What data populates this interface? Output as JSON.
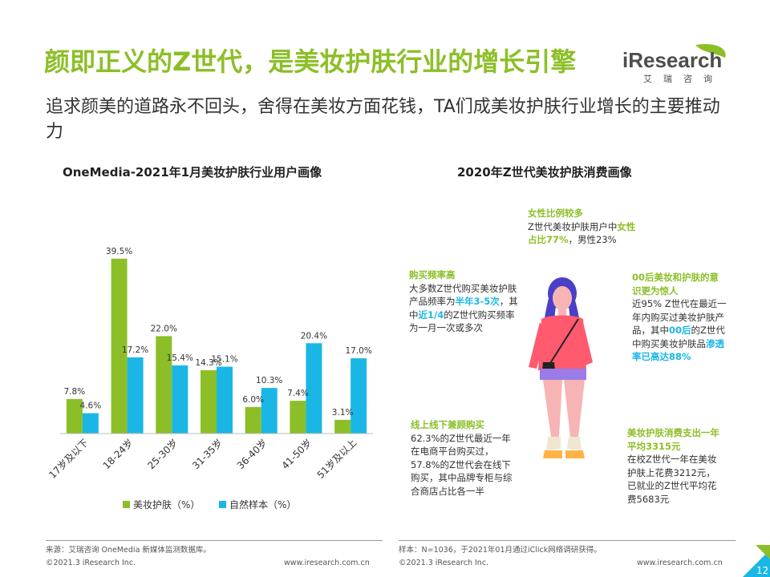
{
  "title": "颜即正义的Z世代，是美妆护肤行业的增长引擎",
  "subtitle": "追求颜美的道路永不回头，舍得在美妆方面花钱，TA们成美妆护肤行业增长的主要推动力",
  "logo": {
    "name": "iResearch",
    "sub": "艾瑞咨询"
  },
  "left_section_title": "OneMedia-2021年1月美妆护肤行业用户画像",
  "right_section_title": "2020年Z世代美妆护肤消费画像",
  "chart_data": {
    "type": "bar",
    "categories": [
      "17岁及以下",
      "18-24岁",
      "25-30岁",
      "31-35岁",
      "36-40岁",
      "41-50岁",
      "51岁及以上"
    ],
    "series": [
      {
        "name": "美妆护肤（%）",
        "values": [
          7.8,
          39.5,
          22.0,
          14.3,
          6.0,
          7.4,
          3.1
        ],
        "labels": [
          "7.8%",
          "39.5%",
          "22.0%",
          "14.3%",
          "6.0%",
          "7.4%",
          "3.1%"
        ],
        "color": "#8cbf27"
      },
      {
        "name": "自然样本（%）",
        "values": [
          4.6,
          17.2,
          15.4,
          15.1,
          10.3,
          20.4,
          17.0
        ],
        "labels": [
          "4.6%",
          "17.2%",
          "15.4%",
          "15.1%",
          "10.3%",
          "20.4%",
          "17.0%"
        ],
        "color": "#1ab7e6"
      }
    ],
    "ylim": [
      0,
      40
    ],
    "grid": false,
    "legend_position": "bottom"
  },
  "callouts": {
    "female": {
      "head": "女性比例较多",
      "t1": "Z世代美妆护肤用户中",
      "hl": "女性占比77%",
      "t2": "，男性23%"
    },
    "frequency": {
      "head": "购买频率高",
      "t1": "大多数Z世代购买美妆护肤产品频率为",
      "hl1": "半年3-5次",
      "t2": "，其中",
      "hl2": "近1/4",
      "t3": "的Z世代购买频率为一月一次或多次"
    },
    "awareness": {
      "head": "00后美妆和护肤的意识更为惊人",
      "t1": "近95% Z世代在最近一年内购买过美妆护肤产品，其中",
      "hl1": "00后",
      "t2": "的Z世代中购买美妆护肤品",
      "hl2": "渗透率已高达88%"
    },
    "channel": {
      "head": "线上线下兼顾购买",
      "body": "62.3%的Z世代最近一年在电商平台购买过，57.8%的Z世代会在线下购买，其中品牌专柜与综合商店占比各一半"
    },
    "spending": {
      "head": "美妆护肤消费支出一年平均3315元",
      "body": "在校Z世代一年在美妆护肤上花费3212元，已就业的Z世代平均花费5683元"
    }
  },
  "footer": {
    "source": "来源：艾瑞咨询 OneMedia 新媒体监测数据库。",
    "sample": "样本：N=1036，于2021年01月通过iClick网络调研获得。",
    "copyright_left": "©2021.3 iResearch Inc.",
    "url_left": "www.iresearch.com.cn",
    "copyright_right": "©2021.3 iResearch Inc.",
    "url_right": "www.iresearch.com.cn",
    "page_number": "12"
  },
  "colors": {
    "accent_green": "#8cbf27",
    "accent_blue": "#1ab7e6"
  }
}
